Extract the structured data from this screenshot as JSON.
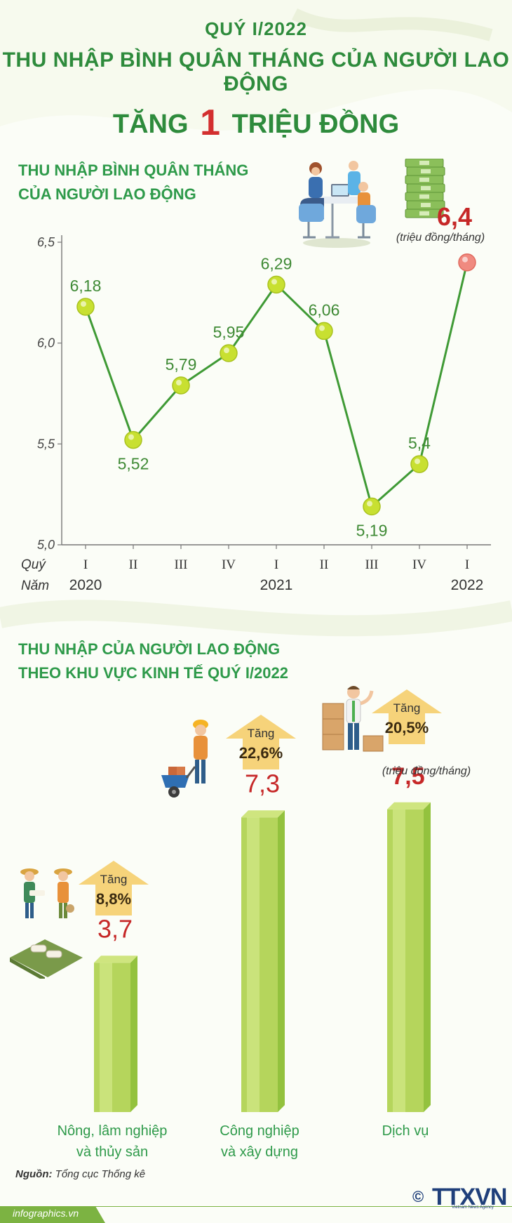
{
  "header": {
    "line1": "QUÝ I/2022",
    "line2": "THU NHẬP BÌNH QUÂN THÁNG CỦA NGƯỜI LAO ĐỘNG",
    "line3_a": "TĂNG",
    "line3_num": "1",
    "line3_b": "TRIỆU ĐỒNG"
  },
  "section1": {
    "title_1": "THU NHẬP BÌNH QUÂN THÁNG",
    "title_2": "CỦA NGƯỜI LAO ĐỘNG",
    "highlight_value": "6,4",
    "highlight_unit": "(triệu đồng/tháng)"
  },
  "section2": {
    "title_1": "THU NHẬP CỦA NGƯỜI LAO ĐỘNG",
    "title_2": "THEO KHU VỰC KINH TẾ QUÝ I/2022",
    "unit": "(triệu đồng/tháng)",
    "increase_label": "Tăng"
  },
  "colors": {
    "title_green": "#2e8b3c",
    "line_green": "#3f9a35",
    "point_fill": "#c8e031",
    "last_point": "#f08a80",
    "highlight_red": "#c62828",
    "bar_green": "#b5d55c",
    "arrow_yellow": "#f6d37a"
  },
  "icons": {
    "office": "office-meeting-icon",
    "money": "money-stack-icon",
    "farmers": "farmers-icon",
    "worker": "construction-worker-icon",
    "services": "delivery-man-icon"
  },
  "chart_data": [
    {
      "type": "line",
      "title": "",
      "xlabel_row1": "Quý",
      "xlabel_row2": "Năm",
      "quarters": [
        "I",
        "II",
        "III",
        "IV",
        "I",
        "II",
        "III",
        "IV",
        "I"
      ],
      "years": [
        {
          "label": "2020",
          "index": 0
        },
        {
          "label": "2021",
          "index": 4
        },
        {
          "label": "2022",
          "index": 8
        }
      ],
      "values": [
        6.18,
        5.52,
        5.79,
        5.95,
        6.29,
        6.06,
        5.19,
        5.4,
        6.4
      ],
      "value_labels": [
        "6,18",
        "5,52",
        "5,79",
        "5,95",
        "6,29",
        "6,06",
        "5,19",
        "5,4",
        "6,4"
      ],
      "yticks": [
        "5,0",
        "5,5",
        "6,0",
        "6,5"
      ],
      "ytick_values": [
        5.0,
        5.5,
        6.0,
        6.5
      ],
      "ylim": [
        5.0,
        6.5
      ],
      "grid": false,
      "label_pos": [
        "above",
        "below",
        "above",
        "above",
        "above",
        "above",
        "below",
        "above",
        "above"
      ]
    },
    {
      "type": "bar",
      "title": "",
      "categories": [
        "Nông, lâm nghiệp và thủy sản",
        "Công nghiệp và xây dựng",
        "Dịch vụ"
      ],
      "category_lines": [
        [
          "Nông, lâm nghiệp",
          "và thủy sản"
        ],
        [
          "Công nghiệp",
          "và xây dựng"
        ],
        [
          "Dịch vụ"
        ]
      ],
      "values": [
        3.7,
        7.3,
        7.5
      ],
      "value_labels": [
        "3,7",
        "7,3",
        "7,5"
      ],
      "growth": [
        "8,8%",
        "22,6%",
        "20,5%"
      ],
      "growth_values": [
        8.8,
        22.6,
        20.5
      ]
    }
  ],
  "footer": {
    "source_label": "Nguồn:",
    "source": "Tổng cục Thống kê",
    "site": "infographics.vn",
    "logo": "TTXVN",
    "logo_sub": "Vietnam News Agency",
    "copyright": "©"
  }
}
